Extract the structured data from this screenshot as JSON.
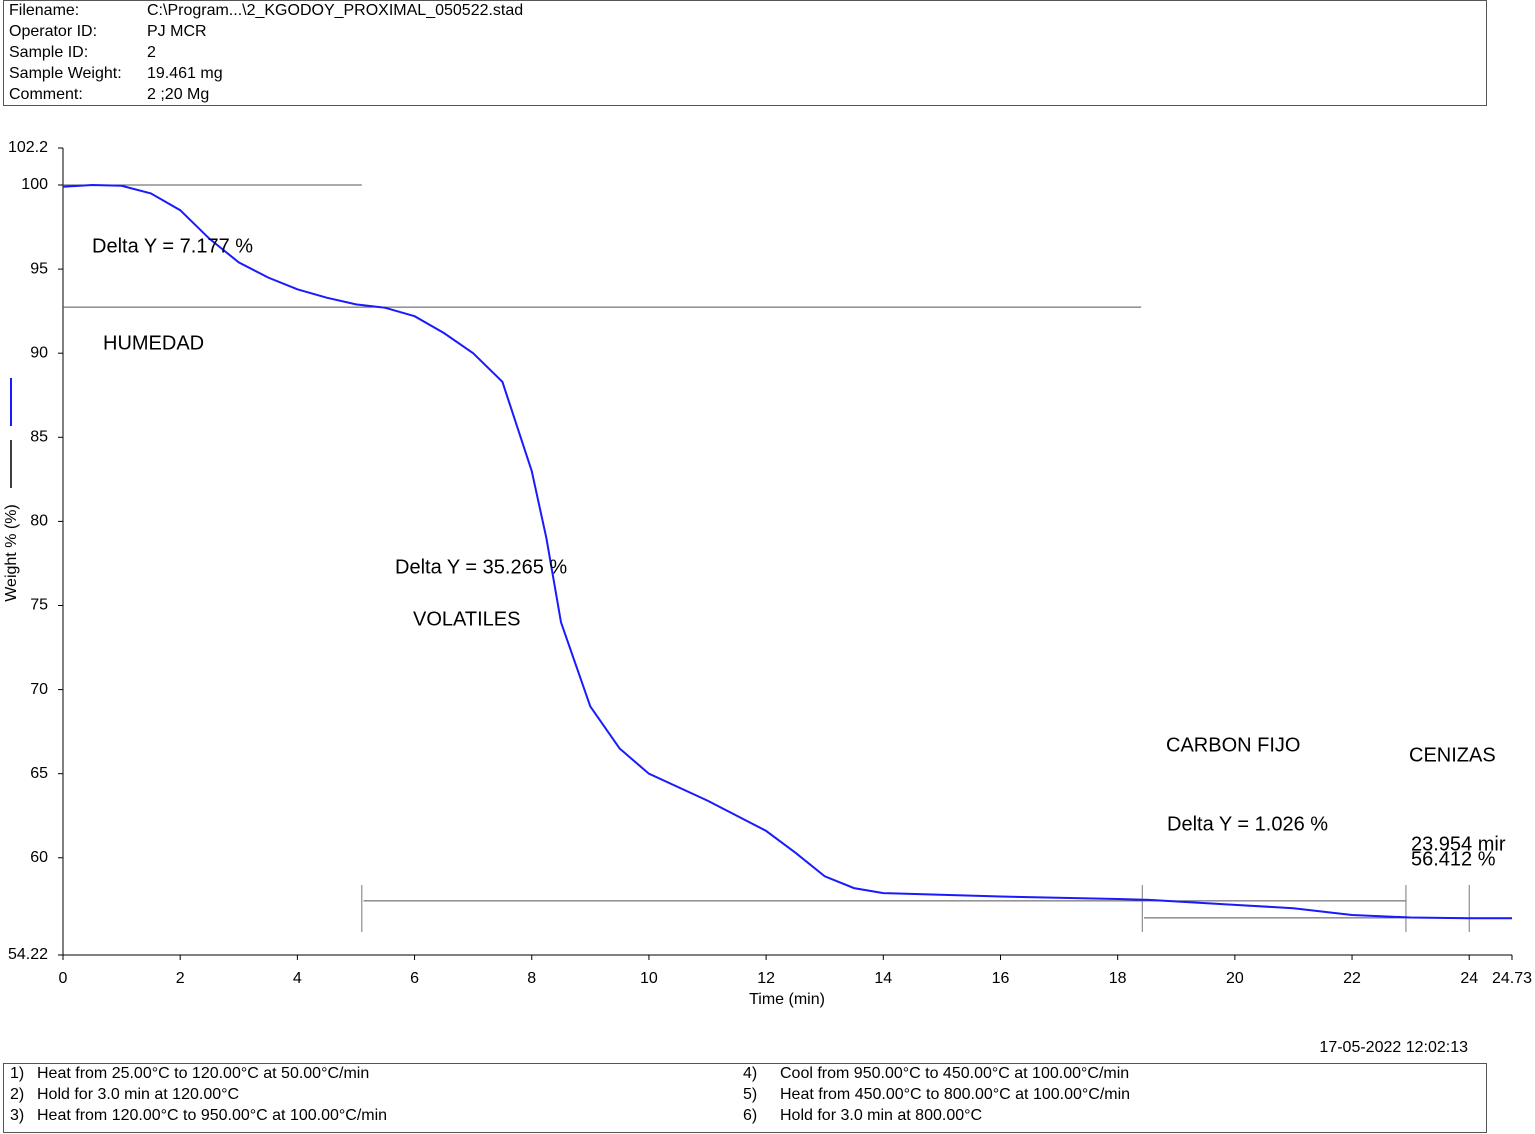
{
  "header": {
    "rows": [
      {
        "label": "Filename:",
        "value": "C:\\Program...\\2_KGODOY_PROXIMAL_050522.stad"
      },
      {
        "label": "Operator ID:",
        "value": "PJ MCR"
      },
      {
        "label": "Sample ID:",
        "value": "2"
      },
      {
        "label": "Sample Weight:",
        "value": "19.461 mg"
      },
      {
        "label": "Comment:",
        "value": "2 ;20 Mg"
      }
    ]
  },
  "chart_data": {
    "type": "line",
    "x_label": "Time (min)",
    "y_label": "Weight % (%)",
    "xlim": [
      0,
      24.73
    ],
    "ylim": [
      54.22,
      102.2
    ],
    "xticks": [
      0,
      2,
      4,
      6,
      8,
      10,
      12,
      14,
      16,
      18,
      20,
      22,
      24,
      24.73
    ],
    "yticks": [
      54.22,
      60,
      65,
      70,
      75,
      80,
      85,
      90,
      95,
      100,
      102.2
    ],
    "series": [
      {
        "color": "#1a1aff",
        "x": [
          0,
          0.5,
          1,
          1.5,
          2,
          2.5,
          3,
          3.5,
          4,
          4.5,
          5,
          5.5,
          6,
          6.5,
          7,
          7.5,
          8,
          8.25,
          8.5,
          9,
          9.5,
          10,
          11,
          12,
          12.5,
          13,
          13.5,
          14,
          16,
          18,
          18.5,
          20,
          21,
          22,
          23,
          24,
          24.73
        ],
        "values": [
          99.9,
          100,
          99.95,
          99.5,
          98.5,
          96.8,
          95.4,
          94.5,
          93.8,
          93.3,
          92.9,
          92.7,
          92.2,
          91.2,
          90,
          88.3,
          83,
          79,
          74,
          69,
          66.5,
          65,
          63.4,
          61.6,
          60.3,
          58.9,
          58.2,
          57.9,
          57.7,
          57.55,
          57.5,
          57.2,
          57,
          56.6,
          56.45,
          56.41,
          56.4
        ]
      }
    ],
    "reference_lines": [
      {
        "y": 100,
        "x": [
          0,
          5.1
        ]
      },
      {
        "y": 92.74,
        "x": [
          0,
          18.4
        ]
      },
      {
        "y": 57.44,
        "x": [
          5.13,
          22.92
        ]
      },
      {
        "y": 56.43,
        "x": [
          18.45,
          24.73
        ]
      }
    ],
    "step_markers": [
      5.1,
      18.42,
      22.92,
      24.0
    ],
    "annotations": [
      "Delta Y = 7.177 %",
      "HUMEDAD",
      "Delta Y = 35.265 %",
      "VOLATILES",
      "CARBON FIJO",
      "CENIZAS",
      "Delta Y = 1.026 %",
      "23.954 mir",
      "56.412 %"
    ]
  },
  "timestamp": "17-05-2022 12:02:13",
  "method": {
    "steps": [
      {
        "number": "1)",
        "text": "Heat from 25.00°C to 120.00°C at 50.00°C/min"
      },
      {
        "number": "2)",
        "text": "Hold for 3.0 min at 120.00°C"
      },
      {
        "number": "3)",
        "text": "Heat from 120.00°C to 950.00°C at 100.00°C/min"
      },
      {
        "number": "4)",
        "text": "Cool from 950.00°C to 450.00°C at 100.00°C/min"
      },
      {
        "number": "5)",
        "text": "Heat from 450.00°C to 800.00°C at 100.00°C/min"
      },
      {
        "number": "6)",
        "text": "Hold for 3.0 min at 800.00°C"
      }
    ]
  }
}
